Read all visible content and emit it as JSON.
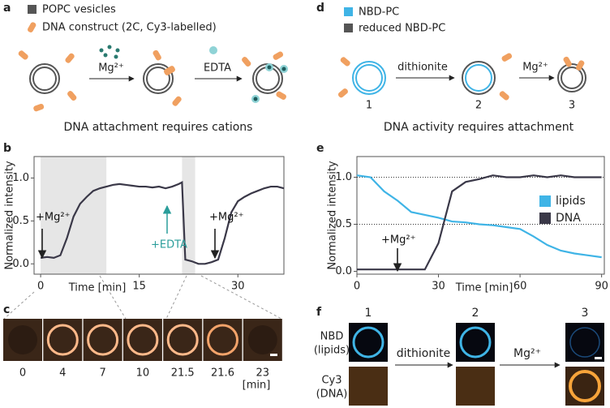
{
  "panel_letters": [
    "a",
    "b",
    "c",
    "d",
    "e",
    "f"
  ],
  "scheme_a": {
    "legend": [
      "POPC vesicles",
      "DNA construct (2C, Cy3-labelled)"
    ],
    "steps": [
      "Mg²⁺",
      "EDTA"
    ],
    "caption": "DNA attachment requires cations"
  },
  "scheme_d": {
    "legend": [
      "NBD-PC",
      "reduced NBD-PC"
    ],
    "steps": [
      "dithionite",
      "Mg²⁺"
    ],
    "stages": [
      "1",
      "2",
      "3"
    ],
    "caption": "DNA activity requires attachment"
  },
  "micrographs_c": {
    "times": [
      "0",
      "4",
      "7",
      "10",
      "21.5",
      "21.6",
      "23"
    ],
    "unit": "[min]"
  },
  "micrographs_f": {
    "columns": [
      "1",
      "2",
      "3"
    ],
    "rows": [
      [
        "NBD",
        "(lipids)"
      ],
      [
        "Cy3",
        "(DNA)"
      ]
    ],
    "steps": [
      "dithionite",
      "Mg²⁺"
    ]
  },
  "chart_data": [
    {
      "type": "line",
      "xlabel": "Time [min]",
      "ylabel": "Normalized intensity",
      "color": "#3a3848",
      "x": [
        0,
        1,
        2,
        3,
        4,
        5,
        6,
        7,
        8,
        9,
        10,
        11,
        12,
        13,
        14,
        15,
        16,
        17,
        18,
        19,
        20,
        21,
        21.5,
        22,
        23,
        24,
        25,
        26,
        27,
        28,
        29,
        30,
        31,
        32,
        33,
        34,
        35,
        36,
        37
      ],
      "values": [
        0.07,
        0.08,
        0.07,
        0.1,
        0.3,
        0.55,
        0.7,
        0.78,
        0.85,
        0.88,
        0.9,
        0.92,
        0.93,
        0.92,
        0.91,
        0.9,
        0.9,
        0.89,
        0.9,
        0.88,
        0.9,
        0.93,
        0.95,
        0.05,
        0.03,
        0,
        0,
        0.02,
        0.05,
        0.3,
        0.6,
        0.73,
        0.78,
        0.82,
        0.85,
        0.88,
        0.9,
        0.9,
        0.88
      ],
      "spans": [
        [
          0,
          10
        ],
        [
          21.5,
          23.5
        ]
      ],
      "annotations": [
        "+Mg²⁺",
        "+EDTA",
        "+Mg²⁺"
      ],
      "xlim": [
        -1,
        37
      ],
      "ylim": [
        -0.12,
        1.25
      ],
      "xticks": [
        0,
        15,
        30
      ],
      "yticks": [
        {
          "value": 0,
          "label": "0.0"
        },
        {
          "value": 0.5,
          "label": "0.5"
        },
        {
          "value": 1,
          "label": "1.0"
        }
      ]
    },
    {
      "type": "line",
      "xlabel": "Time [min]",
      "ylabel": "Normalized intensity",
      "x": [
        0,
        5,
        10,
        15,
        20,
        25,
        30,
        35,
        40,
        45,
        50,
        55,
        60,
        65,
        70,
        75,
        80,
        85,
        90
      ],
      "series": [
        {
          "name": "lipids",
          "color": "#3fb4e6",
          "values": [
            1.02,
            1.0,
            0.85,
            0.75,
            0.63,
            0.6,
            0.57,
            0.53,
            0.52,
            0.5,
            0.49,
            0.47,
            0.45,
            0.37,
            0.28,
            0.22,
            0.19,
            0.17,
            0.15
          ]
        },
        {
          "name": "DNA",
          "color": "#3a3848",
          "values": [
            0.02,
            0.02,
            0.02,
            0.02,
            0.02,
            0.02,
            0.3,
            0.85,
            0.95,
            0.98,
            1.02,
            1.0,
            1.0,
            1.02,
            1.0,
            1.02,
            1.0,
            1.0,
            1.0
          ]
        }
      ],
      "reference_lines": [
        1,
        0.5
      ],
      "annotations": [
        "+Mg²⁺"
      ],
      "legend": "right",
      "xlim": [
        0,
        91
      ],
      "ylim": [
        -0.03,
        1.22
      ],
      "xticks": [
        0,
        30,
        60,
        90
      ],
      "yticks": [
        {
          "value": 0,
          "label": "0.0"
        },
        {
          "value": 0.5,
          "label": "0.5"
        },
        {
          "value": 1,
          "label": "1.0"
        }
      ]
    }
  ]
}
